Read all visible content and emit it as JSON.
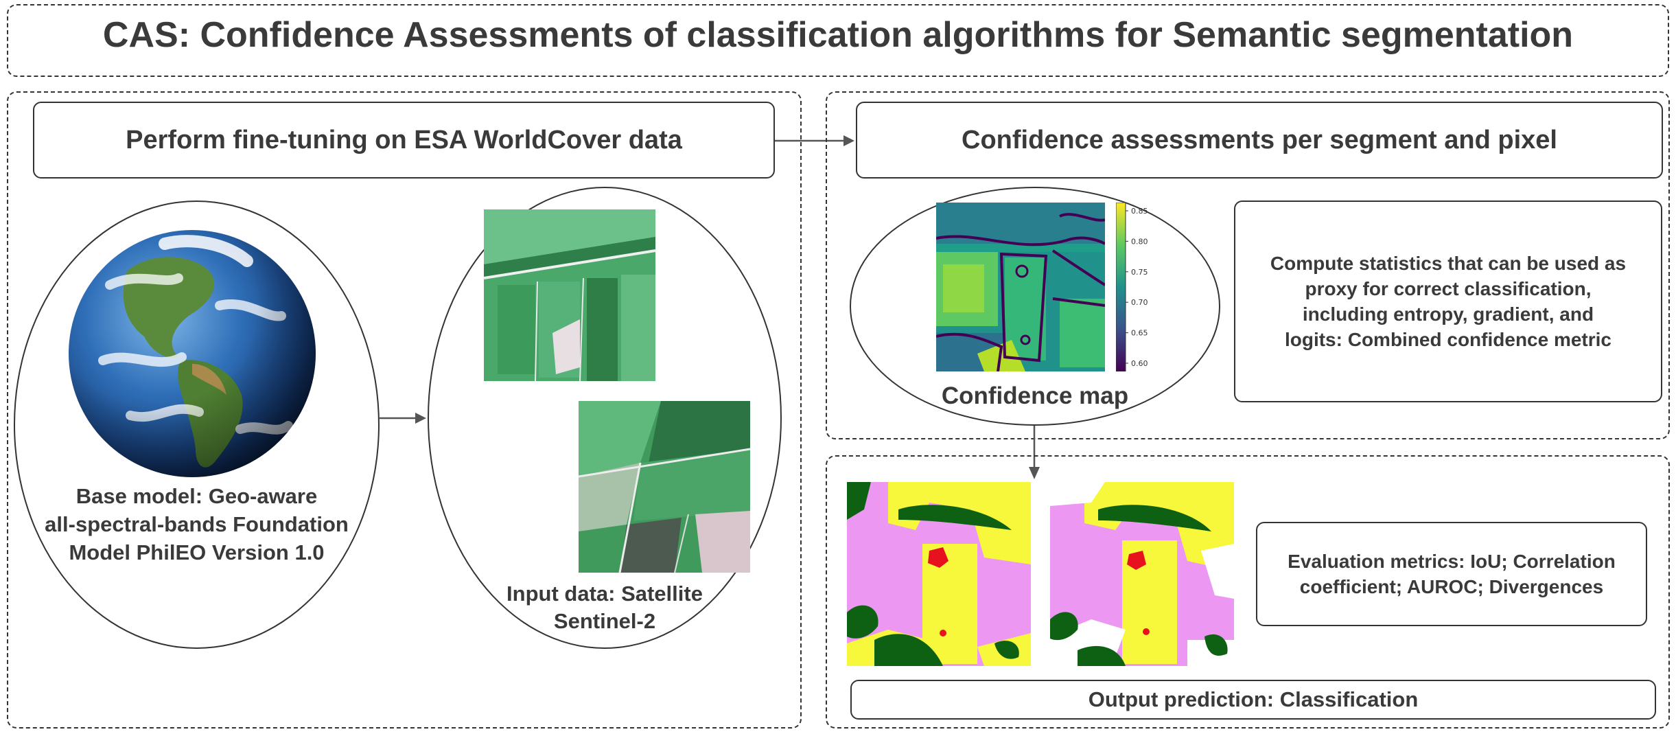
{
  "title": "CAS: Confidence Assessments of classification algorithms for Semantic segmentation",
  "left_panel": {
    "header": "Perform fine-tuning on ESA WorldCover data",
    "base_model": {
      "icon": "earth-globe-icon",
      "line1": "Base model: Geo-aware",
      "line2": "all-spectral-bands Foundation",
      "line3": "Model PhilEO Version 1.0"
    },
    "input_data": {
      "icon": "satellite-image-icon",
      "line1": "Input data: Satellite",
      "line2": "Sentinel-2"
    }
  },
  "right_panel": {
    "header": "Confidence assessments per segment and pixel",
    "confidence_map": {
      "label": "Confidence map",
      "colorbar_ticks": [
        "0.85",
        "0.80",
        "0.75",
        "0.70",
        "0.65",
        "0.60"
      ],
      "colormap": [
        "#440154",
        "#3b528b",
        "#21918c",
        "#5ec962",
        "#fde725"
      ]
    },
    "statistics": {
      "line1": "Compute statistics that can be used as",
      "line2": "proxy for correct classification,",
      "line3": "including entropy, gradient, and",
      "line4": "logits: Combined confidence metric"
    },
    "evaluation": {
      "line1": "Evaluation metrics: IoU; Correlation",
      "line2": "coefficient; AUROC; Divergences"
    },
    "output": "Output prediction: Classification",
    "class_colors": {
      "cropland": "#f7f73b",
      "grassland": "#ec98f2",
      "tree_cover": "#0e6112",
      "built_up": "#e8121f",
      "unclassified": "#ffffff"
    }
  }
}
